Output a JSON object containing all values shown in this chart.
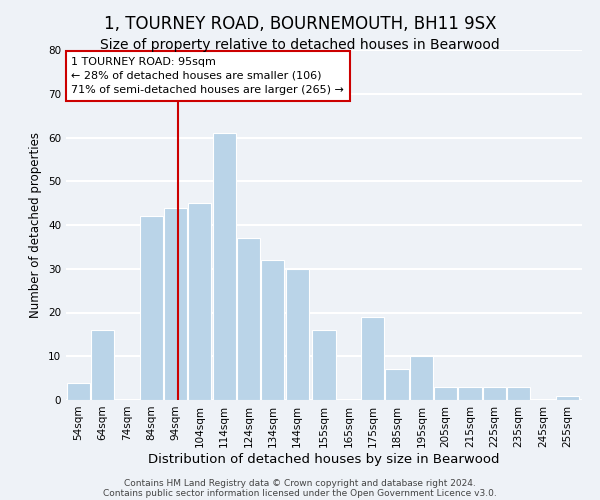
{
  "title": "1, TOURNEY ROAD, BOURNEMOUTH, BH11 9SX",
  "subtitle": "Size of property relative to detached houses in Bearwood",
  "xlabel": "Distribution of detached houses by size in Bearwood",
  "ylabel": "Number of detached properties",
  "bar_centers": [
    54,
    64,
    74,
    84,
    94,
    104,
    114,
    124,
    134,
    144,
    155,
    165,
    175,
    185,
    195,
    205,
    215,
    225,
    235,
    245,
    255
  ],
  "bar_heights": [
    4,
    16,
    0,
    42,
    44,
    45,
    61,
    37,
    32,
    30,
    16,
    0,
    19,
    7,
    10,
    3,
    3,
    3,
    3,
    0,
    1
  ],
  "bar_width": 9.5,
  "bar_color": "#bad4e8",
  "bar_edgecolor": "#ffffff",
  "vline_x": 95,
  "vline_color": "#cc0000",
  "annotation_text_line1": "1 TOURNEY ROAD: 95sqm",
  "annotation_text_line2": "← 28% of detached houses are smaller (106)",
  "annotation_text_line3": "71% of semi-detached houses are larger (265) →",
  "annotation_box_facecolor": "#ffffff",
  "annotation_box_edgecolor": "#cc0000",
  "ylim": [
    0,
    80
  ],
  "yticks": [
    0,
    10,
    20,
    30,
    40,
    50,
    60,
    70,
    80
  ],
  "xtick_labels": [
    "54sqm",
    "64sqm",
    "74sqm",
    "84sqm",
    "94sqm",
    "104sqm",
    "114sqm",
    "124sqm",
    "134sqm",
    "144sqm",
    "155sqm",
    "165sqm",
    "175sqm",
    "185sqm",
    "195sqm",
    "205sqm",
    "215sqm",
    "225sqm",
    "235sqm",
    "245sqm",
    "255sqm"
  ],
  "xtick_positions": [
    54,
    64,
    74,
    84,
    94,
    104,
    114,
    124,
    134,
    144,
    155,
    165,
    175,
    185,
    195,
    205,
    215,
    225,
    235,
    245,
    255
  ],
  "footer_line1": "Contains HM Land Registry data © Crown copyright and database right 2024.",
  "footer_line2": "Contains public sector information licensed under the Open Government Licence v3.0.",
  "background_color": "#eef2f7",
  "grid_color": "#ffffff",
  "title_fontsize": 12,
  "subtitle_fontsize": 10,
  "xlabel_fontsize": 9.5,
  "ylabel_fontsize": 8.5,
  "tick_fontsize": 7.5,
  "annotation_fontsize": 8,
  "footer_fontsize": 6.5
}
